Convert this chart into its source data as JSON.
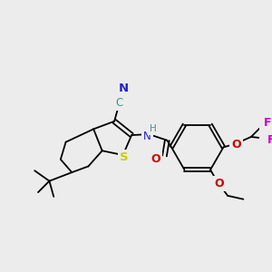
{
  "bg_color": "#ececec",
  "fig_size": [
    3.0,
    3.0
  ],
  "dpi": 100,
  "lw": 1.3,
  "atom_colors": {
    "S": "#cccc00",
    "N": "#2222cc",
    "NH": "#2222cc",
    "H": "#4a9090",
    "O": "#cc0000",
    "F": "#cc00cc",
    "C_cyan": "#4a9090",
    "C": "#000000"
  }
}
